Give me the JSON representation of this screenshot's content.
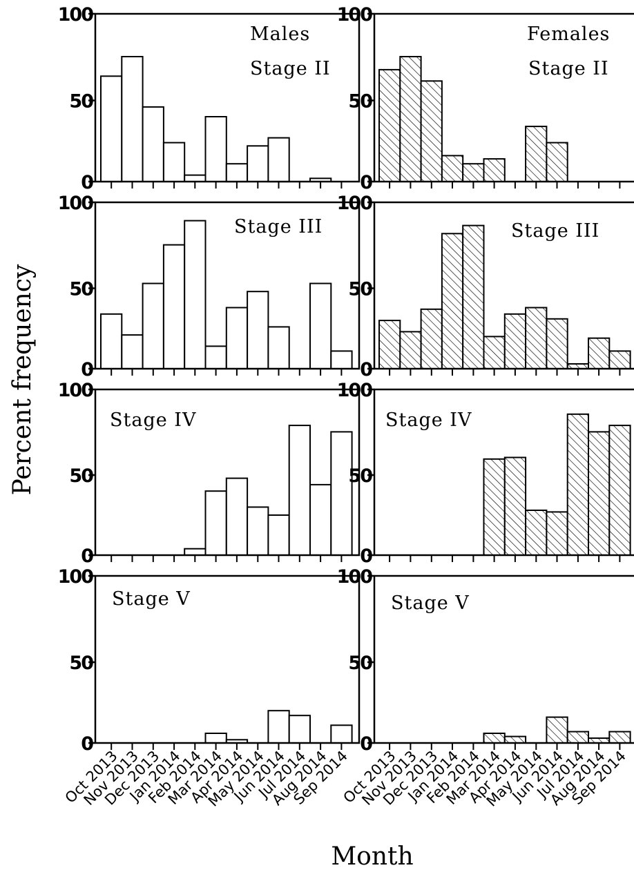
{
  "chart_data": {
    "type": "bar",
    "xlabel": "Month",
    "ylabel": "Percent frequency",
    "ylim": [
      0,
      100
    ],
    "yticks": [
      0,
      50,
      100
    ],
    "categories": [
      "Oct 2013",
      "Nov 2013",
      "Dec 2013",
      "Jan 2014",
      "Feb 2014",
      "Mar 2014",
      "Apr 2014",
      "May 2014",
      "Jun 2014",
      "Jul 2014",
      "Aug 2014",
      "Sep 2014"
    ],
    "series": [
      {
        "name": "Males",
        "fill": "#ffffff",
        "hatch": false
      },
      {
        "name": "Females",
        "fill": "hatched",
        "hatch": true
      }
    ],
    "panels": [
      {
        "stage": "Stage II",
        "males_label": "Males",
        "females_label": "Females",
        "males": [
          65,
          77,
          46,
          24,
          4,
          40,
          11,
          22,
          27,
          0,
          2,
          0
        ],
        "females": [
          69,
          77,
          62,
          16,
          11,
          14,
          0,
          34,
          24,
          0,
          0,
          0
        ]
      },
      {
        "stage": "Stage III",
        "males_label": "",
        "females_label": "",
        "males": [
          34,
          21,
          53,
          77,
          92,
          14,
          38,
          48,
          26,
          0,
          53,
          11
        ],
        "females": [
          30,
          23,
          37,
          84,
          89,
          20,
          34,
          38,
          31,
          3,
          19,
          11
        ]
      },
      {
        "stage": "Stage IV",
        "males_label": "",
        "females_label": "",
        "males": [
          0,
          0,
          0,
          0,
          4,
          40,
          48,
          30,
          25,
          81,
          44,
          77
        ],
        "females": [
          0,
          0,
          0,
          0,
          0,
          60,
          61,
          28,
          27,
          88,
          77,
          81
        ]
      },
      {
        "stage": "Stage V",
        "males_label": "",
        "females_label": "",
        "males": [
          0,
          0,
          0,
          0,
          0,
          6,
          2,
          0,
          20,
          17,
          0,
          11
        ],
        "females": [
          0,
          0,
          0,
          0,
          0,
          6,
          4,
          0,
          16,
          7,
          3,
          7
        ]
      }
    ]
  }
}
